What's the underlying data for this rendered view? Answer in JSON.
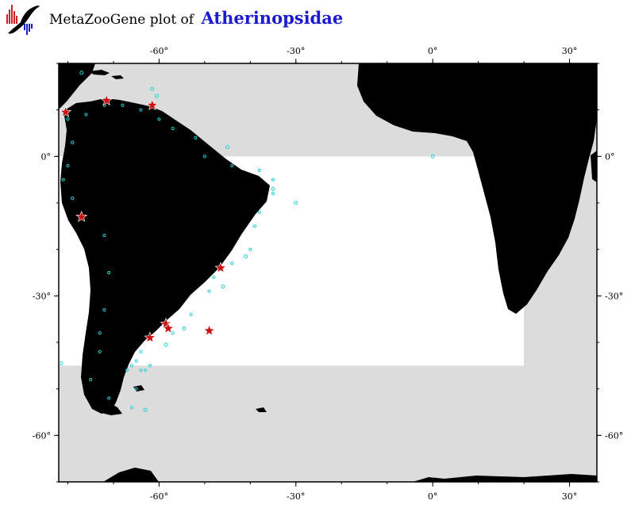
{
  "title": {
    "prefix": "MetaZooGene plot of",
    "taxon": "Atherinopsidae"
  },
  "logo_icon": "metazoogene-bird-logo-icon",
  "colors": {
    "land": "#000000",
    "ocean_outside": "#dcdcdc",
    "ocean_region": "#ffffff",
    "star": "#cc1111",
    "circle": "#1fd3d3",
    "title_taxon": "#1a1ad0"
  },
  "map": {
    "lon_range": [
      -82,
      36
    ],
    "lat_range": [
      -70,
      20
    ],
    "lon_ticks": [
      -60,
      -30,
      0,
      30
    ],
    "lat_ticks": [
      0,
      -30,
      -60
    ],
    "lon_labels": [
      "-60°",
      "-30°",
      "0°",
      "30°"
    ],
    "lat_labels": [
      "0°",
      "-30°",
      "-60°"
    ]
  },
  "highlight_region": {
    "lon": [
      -82,
      20
    ],
    "lat": [
      -45,
      0
    ]
  },
  "star_records": [
    {
      "lon": -80.5,
      "lat": 9.5
    },
    {
      "lon": -71.5,
      "lat": 12.0
    },
    {
      "lon": -61.5,
      "lat": 11.0
    },
    {
      "lon": -77.0,
      "lat": -13.0
    },
    {
      "lon": -46.5,
      "lat": -24.0
    },
    {
      "lon": -58.5,
      "lat": -36.0
    },
    {
      "lon": -58.0,
      "lat": -37.0
    },
    {
      "lon": -62.0,
      "lat": -39.0
    },
    {
      "lon": -49.0,
      "lat": -37.5
    }
  ],
  "circle_records": [
    {
      "lon": -77.0,
      "lat": 18.0
    },
    {
      "lon": -61.5,
      "lat": 14.5
    },
    {
      "lon": -60.5,
      "lat": 13.0
    },
    {
      "lon": -45.0,
      "lat": 2.0
    },
    {
      "lon": -30.0,
      "lat": -10.0
    },
    {
      "lon": 0.0,
      "lat": 0.0
    },
    {
      "lon": -46.0,
      "lat": -28.0
    },
    {
      "lon": -54.5,
      "lat": -37.0
    },
    {
      "lon": -58.5,
      "lat": -40.5
    },
    {
      "lon": -81.5,
      "lat": -44.5
    },
    {
      "lon": -63.0,
      "lat": -54.5
    },
    {
      "lon": -35.0,
      "lat": -7.0
    },
    {
      "lon": -41.0,
      "lat": -21.5
    }
  ]
}
